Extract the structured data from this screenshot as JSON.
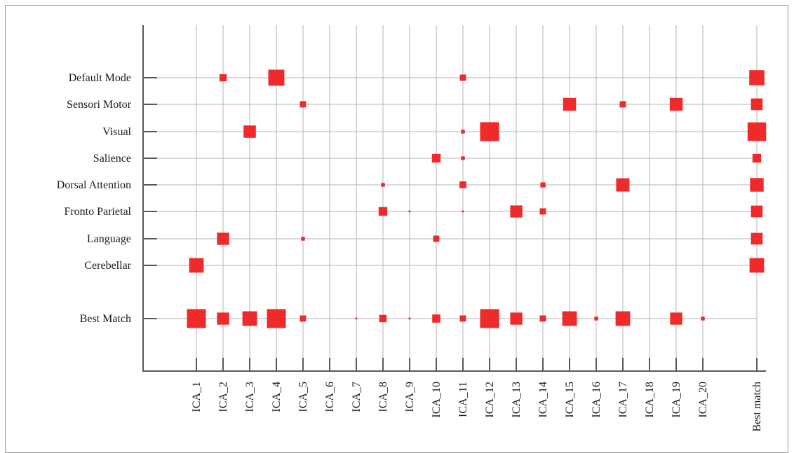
{
  "chart_data": {
    "type": "heatmap",
    "marker": "square",
    "rows": [
      "Default Mode",
      "Sensori Motor",
      "Visual",
      "Salience",
      "Dorsal Attention",
      "Fronto Parietal",
      "Language",
      "Cerebellar",
      "Best Match"
    ],
    "columns": [
      "ICA_1",
      "ICA_2",
      "ICA_3",
      "ICA_4",
      "ICA_5",
      "ICA_6",
      "ICA_7",
      "ICA_8",
      "ICA_9",
      "ICA_10",
      "ICA_11",
      "ICA_12",
      "ICA_13",
      "ICA_14",
      "ICA_15",
      "ICA_16",
      "ICA_17",
      "ICA_18",
      "ICA_19",
      "ICA_20",
      "Best match"
    ],
    "values_relative": [
      [
        0,
        0.38,
        0,
        0.85,
        0,
        0,
        0,
        0,
        0,
        0,
        0.33,
        0,
        0,
        0,
        0,
        0,
        0,
        0,
        0,
        0,
        0.8
      ],
      [
        0,
        0,
        0,
        0,
        0.33,
        0,
        0,
        0,
        0,
        0,
        0,
        0,
        0,
        0,
        0.68,
        0,
        0.33,
        0,
        0.68,
        0,
        0.62
      ],
      [
        0,
        0,
        0.65,
        0,
        0,
        0,
        0,
        0,
        0,
        0,
        0.2,
        1.0,
        0,
        0,
        0,
        0,
        0,
        0,
        0,
        0,
        0.98
      ],
      [
        0,
        0,
        0,
        0,
        0,
        0,
        0,
        0,
        0,
        0.46,
        0.2,
        0,
        0,
        0,
        0,
        0,
        0,
        0,
        0,
        0,
        0.46
      ],
      [
        0,
        0,
        0,
        0,
        0,
        0,
        0,
        0.2,
        0,
        0,
        0.36,
        0,
        0,
        0.27,
        0,
        0,
        0.7,
        0,
        0,
        0,
        0.72
      ],
      [
        0,
        0,
        0,
        0,
        0,
        0,
        0,
        0.46,
        0.1,
        0,
        0.1,
        0,
        0.64,
        0.33,
        0,
        0,
        0,
        0,
        0,
        0,
        0.62
      ],
      [
        0,
        0.64,
        0,
        0,
        0.2,
        0,
        0,
        0,
        0,
        0.33,
        0,
        0,
        0,
        0,
        0,
        0,
        0,
        0,
        0,
        0,
        0.62
      ],
      [
        0.77,
        0,
        0,
        0,
        0,
        0,
        0,
        0,
        0,
        0,
        0,
        0,
        0,
        0,
        0,
        0,
        0,
        0,
        0,
        0,
        0.77
      ],
      [
        1.0,
        0.64,
        0.77,
        1.0,
        0.33,
        0,
        0.1,
        0.39,
        0.1,
        0.43,
        0.33,
        1.0,
        0.64,
        0.33,
        0.77,
        0.2,
        0.77,
        0,
        0.64,
        0.2,
        0
      ]
    ],
    "grid": true,
    "colors": {
      "marker": "#ee2a2a",
      "grid": "#b3b3b3",
      "axis": "#595959",
      "text": "#1a1a1a"
    }
  }
}
